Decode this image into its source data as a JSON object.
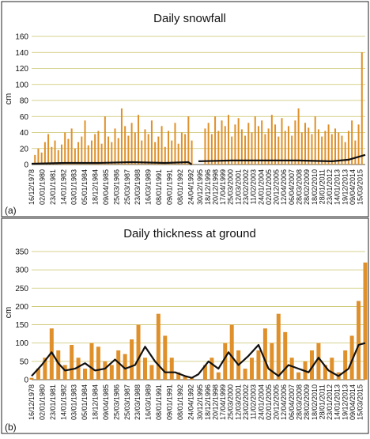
{
  "chart_data": [
    {
      "panel_label": "(a)",
      "type": "bar",
      "title": "Daily snowfall",
      "xlabel": "",
      "ylabel": "cm",
      "ylim": [
        0,
        160
      ],
      "yticks": [
        0,
        20,
        40,
        60,
        80,
        100,
        120,
        140,
        160
      ],
      "grid": true,
      "colors": {
        "bars": "#E0902A",
        "line": "#111111",
        "grid": "#C9C36A"
      },
      "xticks_left": [
        "16/12/1978",
        "02/01/1980",
        "23/01/1981",
        "14/01/1982",
        "03/01/1983",
        "05/01/1984",
        "18/12/1984",
        "09/04/1985",
        "25/03/1986",
        "25/03/1987",
        "23/03/1988",
        "16/03/1989",
        "08/01/1991",
        "09/01/1991",
        "08/01/1992",
        "24/04/1992"
      ],
      "xticks_right": [
        "30/12/1995",
        "18/12/1996",
        "20/12/1998",
        "17/04/1999",
        "25/03/2000",
        "12/03/2001",
        "23/02/2002",
        "11/02/2003",
        "24/01/2004",
        "02/01/2005",
        "20/12/2005",
        "12/04/2006",
        "06/04/2007",
        "28/03/2008",
        "28/02/2009",
        "18/02/2010",
        "28/01/2011",
        "23/01/2012",
        "14/01/2013",
        "19/12/2013",
        "09/04/2014",
        "15/03/2015"
      ],
      "series": [
        {
          "kind": "bars",
          "x": [
            0.01,
            0.02,
            0.03,
            0.04,
            0.05,
            0.06,
            0.07,
            0.08,
            0.09,
            0.1,
            0.11,
            0.12,
            0.13,
            0.14,
            0.15,
            0.16,
            0.17,
            0.18,
            0.19,
            0.2,
            0.21,
            0.22,
            0.23,
            0.24,
            0.25,
            0.26,
            0.27,
            0.28,
            0.29,
            0.3,
            0.31,
            0.32,
            0.33,
            0.34,
            0.35,
            0.36,
            0.37,
            0.38,
            0.39,
            0.4,
            0.41,
            0.42,
            0.43,
            0.44,
            0.45,
            0.46,
            0.47,
            0.48,
            0.49,
            0.5,
            0.51,
            0.52,
            0.53,
            0.54,
            0.55,
            0.56,
            0.57,
            0.58,
            0.59,
            0.6,
            0.61,
            0.62,
            0.63,
            0.64,
            0.65,
            0.66,
            0.67,
            0.68,
            0.69,
            0.7,
            0.71,
            0.72,
            0.73,
            0.74,
            0.75,
            0.76,
            0.77,
            0.78,
            0.79,
            0.8,
            0.81,
            0.82,
            0.83,
            0.84,
            0.85,
            0.86,
            0.87,
            0.88,
            0.89,
            0.9,
            0.91,
            0.92,
            0.93,
            0.94,
            0.95,
            0.96,
            0.97,
            0.98,
            0.99
          ],
          "values": [
            12,
            20,
            15,
            28,
            38,
            22,
            30,
            18,
            25,
            40,
            32,
            45,
            20,
            28,
            35,
            55,
            24,
            30,
            38,
            42,
            26,
            60,
            35,
            28,
            45,
            33,
            70,
            48,
            36,
            52,
            40,
            62,
            30,
            44,
            38,
            55,
            28,
            35,
            48,
            22,
            42,
            30,
            52,
            26,
            40,
            38,
            60,
            30,
            0,
            0,
            0,
            45,
            52,
            38,
            60,
            42,
            55,
            48,
            62,
            35,
            50,
            58,
            44,
            36,
            52,
            40,
            60,
            48,
            55,
            38,
            45,
            62,
            50,
            35,
            58,
            42,
            48,
            36,
            55,
            70,
            40,
            52,
            46,
            38,
            60,
            44,
            35,
            42,
            50,
            38,
            45,
            40,
            36,
            28,
            42,
            55,
            30,
            50,
            140
          ]
        },
        {
          "kind": "line",
          "x": [
            0.0,
            0.1,
            0.2,
            0.3,
            0.4,
            0.47,
            0.48,
            0.49,
            0.5,
            0.6,
            0.7,
            0.8,
            0.9,
            0.95,
            1.0
          ],
          "values": [
            1,
            2,
            2,
            3,
            2,
            3,
            0,
            0,
            4,
            5,
            5,
            5,
            4,
            6,
            12
          ]
        }
      ]
    },
    {
      "panel_label": "(b)",
      "type": "area",
      "title": "Daily thickness at ground",
      "xlabel": "",
      "ylabel": "cm",
      "ylim": [
        0,
        350
      ],
      "yticks": [
        0,
        50,
        100,
        150,
        200,
        250,
        300,
        350
      ],
      "grid": true,
      "colors": {
        "fill": "#E0902A",
        "line": "#111111",
        "grid": "#C9C36A"
      },
      "xticks_left": [
        "16/12/1978",
        "02/01/1980",
        "23/01/1981",
        "14/01/1982",
        "03/01/1983",
        "05/01/1984",
        "18/12/1984",
        "09/04/1985",
        "25/03/1986",
        "25/03/1987",
        "23/03/1988",
        "16/03/1989",
        "08/01/1991",
        "09/01/1991",
        "08/01/1992",
        "24/04/1992"
      ],
      "xticks_right": [
        "30/12/1995",
        "18/12/1996",
        "20/12/1998",
        "17/04/1999",
        "25/03/2000",
        "12/03/2001",
        "23/02/2002",
        "11/02/2003",
        "24/01/2004",
        "02/01/2005",
        "20/12/2005",
        "12/04/2006",
        "06/04/2007",
        "28/03/2008",
        "28/02/2009",
        "18/02/2010",
        "28/01/2011",
        "23/01/2012",
        "14/01/2013",
        "19/12/2013",
        "09/04/2014",
        "15/03/2015"
      ],
      "series": [
        {
          "kind": "area",
          "x": [
            0.0,
            0.02,
            0.04,
            0.06,
            0.08,
            0.1,
            0.12,
            0.14,
            0.16,
            0.18,
            0.2,
            0.22,
            0.24,
            0.26,
            0.28,
            0.3,
            0.32,
            0.34,
            0.36,
            0.38,
            0.4,
            0.42,
            0.44,
            0.46,
            0.48,
            0.5,
            0.52,
            0.54,
            0.56,
            0.58,
            0.6,
            0.62,
            0.64,
            0.66,
            0.68,
            0.7,
            0.72,
            0.74,
            0.76,
            0.78,
            0.8,
            0.82,
            0.84,
            0.86,
            0.88,
            0.9,
            0.92,
            0.94,
            0.96,
            0.98,
            1.0
          ],
          "values": [
            5,
            30,
            60,
            140,
            80,
            40,
            95,
            60,
            30,
            100,
            90,
            50,
            40,
            80,
            70,
            110,
            150,
            60,
            40,
            180,
            120,
            60,
            20,
            10,
            5,
            10,
            40,
            60,
            20,
            100,
            150,
            80,
            30,
            60,
            80,
            140,
            100,
            180,
            130,
            60,
            20,
            50,
            80,
            100,
            40,
            60,
            20,
            80,
            120,
            215,
            320
          ]
        },
        {
          "kind": "line",
          "x": [
            0.0,
            0.03,
            0.06,
            0.08,
            0.1,
            0.13,
            0.16,
            0.19,
            0.22,
            0.25,
            0.28,
            0.31,
            0.34,
            0.37,
            0.4,
            0.43,
            0.46,
            0.48,
            0.5,
            0.53,
            0.56,
            0.59,
            0.62,
            0.65,
            0.68,
            0.71,
            0.74,
            0.77,
            0.8,
            0.83,
            0.86,
            0.89,
            0.92,
            0.95,
            0.98,
            1.0
          ],
          "values": [
            10,
            40,
            75,
            45,
            25,
            30,
            45,
            25,
            30,
            55,
            30,
            40,
            90,
            50,
            20,
            20,
            10,
            5,
            15,
            50,
            30,
            75,
            40,
            65,
            95,
            30,
            10,
            40,
            30,
            20,
            60,
            25,
            10,
            30,
            95,
            100
          ]
        }
      ]
    }
  ]
}
